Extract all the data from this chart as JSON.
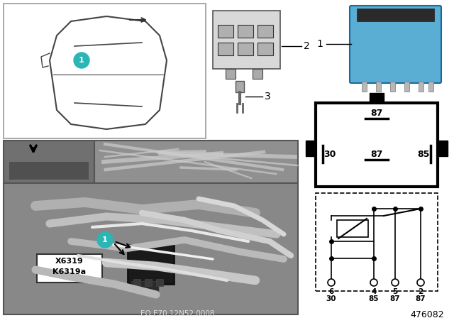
{
  "bg_color": "#ffffff",
  "teal_color": "#2bb5b5",
  "relay_blue": "#5aaed4",
  "part_number": "476082",
  "eo_text": "EO E70 12N52 0008",
  "label_k": "K6319a",
  "label_x": "X6319",
  "pin_top_label": "87",
  "pin_mid_labels": [
    "30",
    "87",
    "85"
  ],
  "circuit_pins": [
    {
      "pin": "6",
      "label": "30"
    },
    {
      "pin": "4",
      "label": "85"
    },
    {
      "pin": "5",
      "label": "87"
    },
    {
      "pin": "2",
      "label": "87"
    }
  ]
}
